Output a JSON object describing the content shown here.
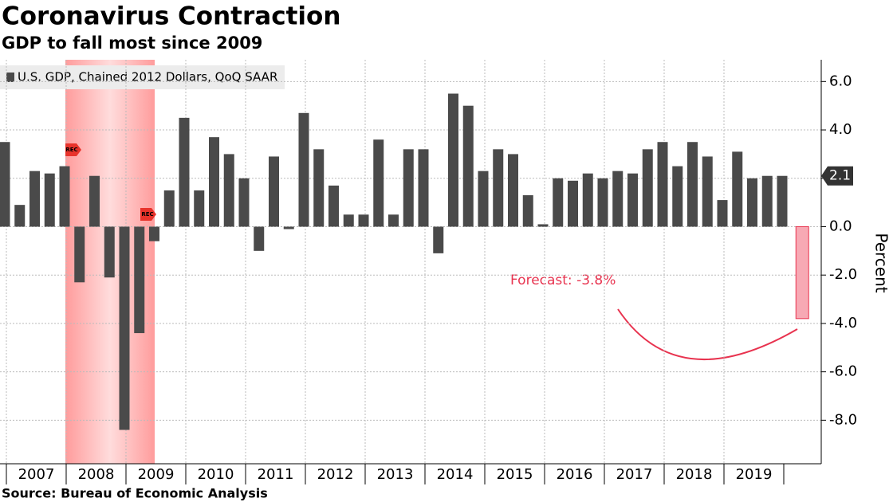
{
  "chart_data": {
    "type": "bar",
    "title": "Coronavirus Contraction",
    "subtitle": "GDP to fall most since 2009",
    "source": "Source: Bureau of Economic Analysis",
    "y_axis_label": "Percent",
    "x_labels": [
      "2007",
      "2008",
      "2009",
      "2010",
      "2011",
      "2012",
      "2013",
      "2014",
      "2015",
      "2016",
      "2017",
      "2018",
      "2019"
    ],
    "series": [
      {
        "name": "U.S. GDP, Chained 2012 Dollars, QoQ SAAR",
        "color": "#4a4a4a",
        "values": [
          3.5,
          0.9,
          2.3,
          2.2,
          2.5,
          -2.3,
          2.1,
          -2.1,
          -8.4,
          -4.4,
          -0.6,
          1.5,
          4.5,
          1.5,
          3.7,
          3.0,
          2.0,
          -1.0,
          2.9,
          -0.1,
          4.7,
          3.2,
          1.7,
          0.5,
          0.5,
          3.6,
          0.5,
          3.2,
          3.2,
          -1.1,
          5.5,
          5.0,
          2.3,
          3.2,
          3.0,
          1.3,
          0.1,
          2.0,
          1.9,
          2.2,
          2.0,
          2.3,
          2.2,
          3.2,
          3.5,
          2.5,
          3.5,
          2.9,
          1.1,
          3.1,
          2.0,
          2.1,
          2.1
        ]
      }
    ],
    "forecast_value": -3.8,
    "forecast_color": "#f7a9b4",
    "annotations": [
      "Forecast: -3.8%",
      "REC",
      "REC"
    ],
    "ylim": [
      -9.8,
      6.9
    ],
    "yticks": [
      {
        "value": 6,
        "label": "6.0"
      },
      {
        "value": 4,
        "label": "4.0"
      },
      {
        "value": 2,
        "label": "2.0"
      },
      {
        "value": 0,
        "label": "0.0"
      },
      {
        "value": -2,
        "label": "-2.0"
      },
      {
        "value": -4,
        "label": "-4.0"
      },
      {
        "value": -6,
        "label": "-6.0"
      },
      {
        "value": -8,
        "label": "-8.0"
      }
    ],
    "grid": true
  }
}
